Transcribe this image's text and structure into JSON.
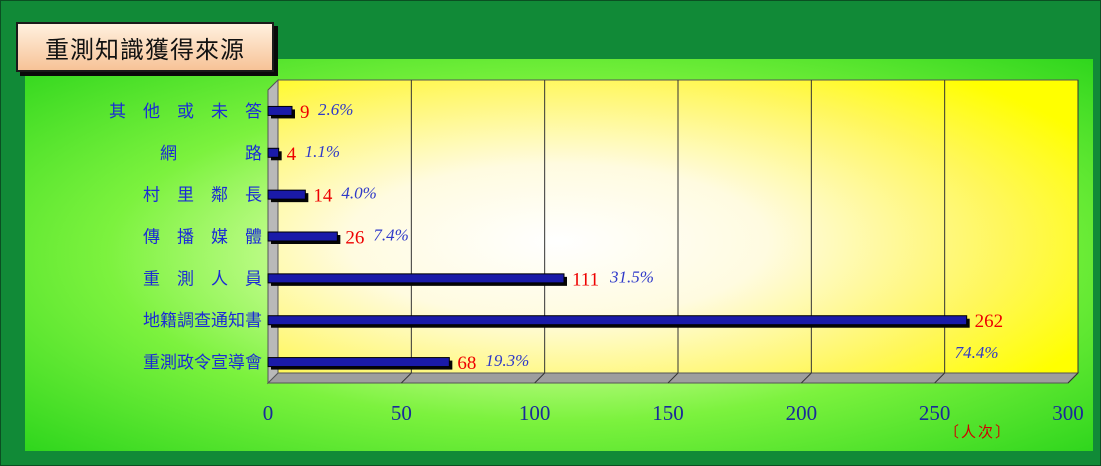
{
  "chart_data": {
    "type": "bar",
    "orientation": "horizontal",
    "title": "重測知識獲得來源",
    "categories": [
      "其　他　或　未　答",
      "網　　　　路",
      "村　里　鄰　長",
      "傳　播　媒　體",
      "重　測　人　員",
      "地籍調查通知書",
      "重測政令宣導會"
    ],
    "values": [
      9,
      4,
      14,
      26,
      111,
      262,
      68
    ],
    "value_labels": [
      "9",
      "4",
      "14",
      "26",
      "111",
      "262",
      "68"
    ],
    "percent_labels": [
      "2.6%",
      "1.1%",
      "4.0%",
      "7.4%",
      "31.5%",
      "74.4%",
      "19.3%"
    ],
    "x_ticks": [
      "0",
      "50",
      "100",
      "150",
      "200",
      "250",
      "300"
    ],
    "xlim": [
      0,
      300
    ],
    "xlabel": "〔人次〕",
    "grid": true,
    "colors": {
      "bar": "#1a1aa8",
      "bar_shadow": "#050505",
      "value_text": "#ee0000",
      "percent_text": "#2f39c9",
      "category_text": "#1b2bd6",
      "frame": "#118a37",
      "plot_glow": "#fffff0",
      "plot_edge": "#ffff00"
    }
  }
}
